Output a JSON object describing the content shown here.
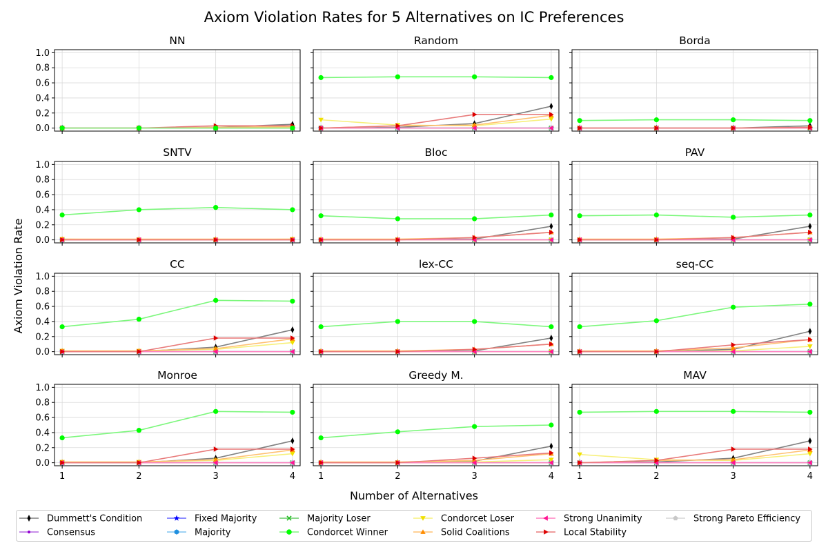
{
  "chart_data": {
    "type": "line",
    "title": "Axiom Violation Rates for 5 Alternatives on IC Preferences",
    "xlabel": "Number of Alternatives",
    "ylabel": "Axiom Violation Rate",
    "x": [
      1,
      2,
      3,
      4
    ],
    "xlim": [
      0.9,
      4.1
    ],
    "ylim": [
      -0.04,
      1.04
    ],
    "yticks": [
      "0.0",
      "0.2",
      "0.4",
      "0.6",
      "0.8",
      "1.0"
    ],
    "xticks": [
      "1",
      "2",
      "3",
      "4"
    ],
    "grid": true,
    "legend_position": "bottom",
    "series_meta": [
      {
        "key": "dummett",
        "name": "Dummett's Condition",
        "color": "#000000",
        "line_color": "#808080",
        "marker": "thin_diamond"
      },
      {
        "key": "consensus",
        "name": "Consensus",
        "color": "#9400D3",
        "line_color": "#b366e0",
        "marker": "point"
      },
      {
        "key": "fixed",
        "name": "Fixed Majority",
        "color": "#0000ff",
        "line_color": "#6666ff",
        "marker": "star"
      },
      {
        "key": "majority",
        "name": "Majority",
        "color": "#1f8fdf",
        "line_color": "#7fc4f0",
        "marker": "hexagon"
      },
      {
        "key": "majloser",
        "name": "Majority Loser",
        "color": "#22bb22",
        "line_color": "#66cc66",
        "marker": "x"
      },
      {
        "key": "condwinner",
        "name": "Condorcet Winner",
        "color": "#00ff00",
        "line_color": "#7cf77c",
        "marker": "circle"
      },
      {
        "key": "condloser",
        "name": "Condorcet Loser",
        "color": "#f0e000",
        "line_color": "#f7f07a",
        "marker": "triangle_down"
      },
      {
        "key": "solid",
        "name": "Solid Coalitions",
        "color": "#ff8c00",
        "line_color": "#ffc070",
        "marker": "triangle_up"
      },
      {
        "key": "strongunan",
        "name": "Strong Unanimity",
        "color": "#ff1493",
        "line_color": "#ff80c0",
        "marker": "triangle_left"
      },
      {
        "key": "localstab",
        "name": "Local Stability",
        "color": "#dd0000",
        "line_color": "#e87a7a",
        "marker": "triangle_right"
      },
      {
        "key": "pareto",
        "name": "Strong Pareto Efficiency",
        "color": "#c8c8c8",
        "line_color": "#d6d6d6",
        "marker": "pentagon"
      }
    ],
    "panels": [
      {
        "title": "NN",
        "series": {
          "dummett": [
            0,
            0,
            0.01,
            0.05
          ],
          "consensus": [
            0,
            0,
            0,
            0
          ],
          "fixed": [
            0,
            0,
            0,
            0
          ],
          "majority": [
            0,
            0,
            0,
            0
          ],
          "majloser": [
            0,
            0,
            0,
            0
          ],
          "condwinner": [
            0,
            0,
            0,
            0
          ],
          "condloser": [
            0,
            0,
            0.01,
            0.01
          ],
          "solid": [
            0,
            0,
            0.01,
            0.02
          ],
          "strongunan": [
            0,
            0,
            0,
            0
          ],
          "localstab": [
            0,
            0,
            0.03,
            0.03
          ],
          "pareto": [
            0,
            0,
            0,
            0
          ]
        }
      },
      {
        "title": "Random",
        "series": {
          "dummett": [
            0,
            0.01,
            0.06,
            0.29
          ],
          "consensus": [
            0,
            0,
            0,
            0
          ],
          "fixed": [
            0,
            0,
            0,
            0
          ],
          "majority": [
            0,
            0,
            0,
            0
          ],
          "majloser": [
            0,
            0,
            0,
            0
          ],
          "condwinner": [
            0.67,
            0.68,
            0.68,
            0.67
          ],
          "condloser": [
            0.11,
            0.04,
            0.03,
            0.12
          ],
          "solid": [
            0,
            0.03,
            0.04,
            0.17
          ],
          "strongunan": [
            0,
            0,
            0,
            0
          ],
          "localstab": [
            0,
            0.03,
            0.18,
            0.18
          ],
          "pareto": [
            0,
            0,
            0,
            0
          ]
        }
      },
      {
        "title": "Borda",
        "series": {
          "dummett": [
            0,
            0,
            0,
            0.03
          ],
          "consensus": [
            0,
            0,
            0,
            0
          ],
          "fixed": [
            0,
            0,
            0,
            0
          ],
          "majority": [
            0,
            0,
            0,
            0
          ],
          "majloser": [
            0,
            0,
            0,
            0
          ],
          "condwinner": [
            0.1,
            0.11,
            0.11,
            0.1
          ],
          "condloser": [
            0,
            0,
            0,
            0
          ],
          "solid": [
            0,
            0,
            0,
            0.01
          ],
          "strongunan": [
            0,
            0,
            0,
            0
          ],
          "localstab": [
            0,
            0,
            0,
            0.01
          ],
          "pareto": [
            0,
            0,
            0,
            0
          ]
        }
      },
      {
        "title": "SNTV",
        "series": {
          "dummett": [
            0,
            0,
            0,
            0
          ],
          "consensus": [
            0,
            0,
            0,
            0
          ],
          "fixed": [
            0,
            0,
            0,
            0
          ],
          "majority": [
            0,
            0,
            0,
            0
          ],
          "majloser": [
            0,
            0,
            0,
            0
          ],
          "condwinner": [
            0.33,
            0.4,
            0.43,
            0.4
          ],
          "condloser": [
            0.01,
            0,
            0,
            0.01
          ],
          "solid": [
            0.01,
            0.01,
            0.01,
            0.01
          ],
          "strongunan": [
            0,
            0,
            0,
            0
          ],
          "localstab": [
            0,
            0,
            0,
            0
          ],
          "pareto": [
            0,
            0,
            0,
            0
          ]
        }
      },
      {
        "title": "Bloc",
        "series": {
          "dummett": [
            0,
            0,
            0.01,
            0.18
          ],
          "consensus": [
            0,
            0,
            0,
            0
          ],
          "fixed": [
            0,
            0,
            0,
            0
          ],
          "majority": [
            0,
            0,
            0,
            0
          ],
          "majloser": [
            0,
            0,
            0,
            0
          ],
          "condwinner": [
            0.32,
            0.28,
            0.28,
            0.33
          ],
          "condloser": [
            0,
            0,
            0,
            0
          ],
          "solid": [
            0.01,
            0.01,
            0.03,
            0.1
          ],
          "strongunan": [
            0,
            0,
            0,
            0
          ],
          "localstab": [
            0,
            0,
            0.03,
            0.1
          ],
          "pareto": [
            0,
            0,
            0,
            0
          ]
        }
      },
      {
        "title": "PAV",
        "series": {
          "dummett": [
            0,
            0,
            0.01,
            0.18
          ],
          "consensus": [
            0,
            0,
            0,
            0
          ],
          "fixed": [
            0,
            0,
            0,
            0
          ],
          "majority": [
            0,
            0,
            0,
            0
          ],
          "majloser": [
            0,
            0,
            0,
            0
          ],
          "condwinner": [
            0.32,
            0.33,
            0.3,
            0.33
          ],
          "condloser": [
            0,
            0,
            0,
            0
          ],
          "solid": [
            0.01,
            0.01,
            0.03,
            0.1
          ],
          "strongunan": [
            0,
            0,
            0,
            0
          ],
          "localstab": [
            0,
            0,
            0.03,
            0.1
          ],
          "pareto": [
            0,
            0,
            0,
            0
          ]
        }
      },
      {
        "title": "CC",
        "series": {
          "dummett": [
            0,
            0,
            0.06,
            0.29
          ],
          "consensus": [
            0,
            0,
            0,
            0
          ],
          "fixed": [
            0,
            0,
            0,
            0
          ],
          "majority": [
            0,
            0,
            0,
            0
          ],
          "majloser": [
            0,
            0,
            0,
            0
          ],
          "condwinner": [
            0.33,
            0.43,
            0.68,
            0.67
          ],
          "condloser": [
            0.01,
            0.01,
            0.03,
            0.12
          ],
          "solid": [
            0.01,
            0.01,
            0.04,
            0.17
          ],
          "strongunan": [
            0,
            0,
            0,
            0
          ],
          "localstab": [
            0,
            0,
            0.18,
            0.18
          ],
          "pareto": [
            0,
            0,
            0,
            0
          ]
        }
      },
      {
        "title": "lex-CC",
        "series": {
          "dummett": [
            0,
            0,
            0.01,
            0.18
          ],
          "consensus": [
            0,
            0,
            0,
            0
          ],
          "fixed": [
            0,
            0,
            0,
            0
          ],
          "majority": [
            0,
            0,
            0,
            0
          ],
          "majloser": [
            0,
            0,
            0,
            0
          ],
          "condwinner": [
            0.33,
            0.4,
            0.4,
            0.33
          ],
          "condloser": [
            0,
            0,
            0,
            0
          ],
          "solid": [
            0.01,
            0.01,
            0.03,
            0.1
          ],
          "strongunan": [
            0,
            0,
            0,
            0
          ],
          "localstab": [
            0,
            0,
            0.03,
            0.1
          ],
          "pareto": [
            0,
            0,
            0,
            0
          ]
        }
      },
      {
        "title": "seq-CC",
        "series": {
          "dummett": [
            0,
            0,
            0.03,
            0.27
          ],
          "consensus": [
            0,
            0,
            0,
            0
          ],
          "fixed": [
            0,
            0,
            0,
            0
          ],
          "majority": [
            0,
            0,
            0,
            0
          ],
          "majloser": [
            0,
            0,
            0,
            0
          ],
          "condwinner": [
            0.33,
            0.41,
            0.59,
            0.63
          ],
          "condloser": [
            0,
            0,
            0.01,
            0.07
          ],
          "solid": [
            0.01,
            0.01,
            0.05,
            0.16
          ],
          "strongunan": [
            0,
            0,
            0,
            0
          ],
          "localstab": [
            0,
            0,
            0.09,
            0.16
          ],
          "pareto": [
            0,
            0,
            0,
            0
          ]
        }
      },
      {
        "title": "Monroe",
        "series": {
          "dummett": [
            0,
            0,
            0.06,
            0.29
          ],
          "consensus": [
            0,
            0,
            0,
            0
          ],
          "fixed": [
            0,
            0,
            0,
            0
          ],
          "majority": [
            0,
            0,
            0,
            0
          ],
          "majloser": [
            0,
            0,
            0,
            0
          ],
          "condwinner": [
            0.33,
            0.43,
            0.68,
            0.67
          ],
          "condloser": [
            0.01,
            0.01,
            0.03,
            0.12
          ],
          "solid": [
            0.01,
            0.01,
            0.04,
            0.17
          ],
          "strongunan": [
            0,
            0,
            0,
            0
          ],
          "localstab": [
            0,
            0,
            0.18,
            0.18
          ],
          "pareto": [
            0,
            0,
            0,
            0
          ]
        }
      },
      {
        "title": "Greedy M.",
        "series": {
          "dummett": [
            0,
            0,
            0.02,
            0.22
          ],
          "consensus": [
            0,
            0,
            0,
            0
          ],
          "fixed": [
            0,
            0,
            0,
            0
          ],
          "majority": [
            0,
            0,
            0,
            0
          ],
          "majloser": [
            0,
            0,
            0,
            0
          ],
          "condwinner": [
            0.33,
            0.41,
            0.48,
            0.5
          ],
          "condloser": [
            0,
            0,
            0.01,
            0.04
          ],
          "solid": [
            0.01,
            0.01,
            0.03,
            0.12
          ],
          "strongunan": [
            0,
            0,
            0,
            0
          ],
          "localstab": [
            0,
            0,
            0.06,
            0.13
          ],
          "pareto": [
            0,
            0,
            0,
            0
          ]
        }
      },
      {
        "title": "MAV",
        "series": {
          "dummett": [
            0,
            0.01,
            0.06,
            0.29
          ],
          "consensus": [
            0,
            0,
            0,
            0
          ],
          "fixed": [
            0,
            0,
            0,
            0
          ],
          "majority": [
            0,
            0,
            0,
            0
          ],
          "majloser": [
            0,
            0,
            0,
            0
          ],
          "condwinner": [
            0.67,
            0.68,
            0.68,
            0.67
          ],
          "condloser": [
            0.11,
            0.04,
            0.03,
            0.12
          ],
          "solid": [
            0,
            0.03,
            0.04,
            0.17
          ],
          "strongunan": [
            0,
            0,
            0,
            0
          ],
          "localstab": [
            0,
            0.03,
            0.18,
            0.18
          ],
          "pareto": [
            0,
            0,
            0,
            0
          ]
        }
      }
    ]
  }
}
